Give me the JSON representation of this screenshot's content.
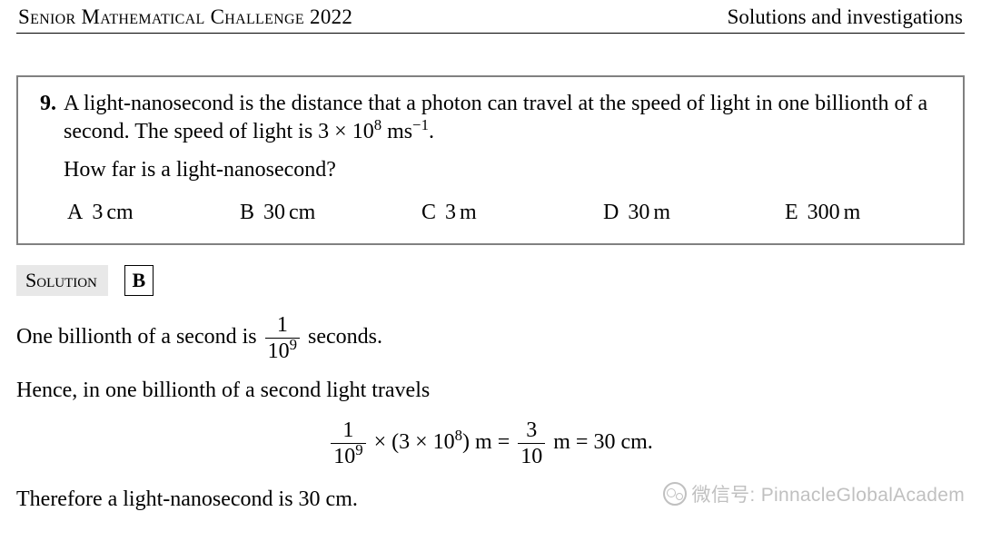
{
  "header": {
    "left": "Senior Mathematical Challenge 2022",
    "right": "Solutions and investigations"
  },
  "question": {
    "number": "9.",
    "text_pre": "A light-nanosecond is the distance that a photon can travel at the speed of light in one billionth of a second. The speed of light is 3 × 10",
    "text_exp": "8",
    "text_post": " ms",
    "text_exp2": "−1",
    "text_end": ".",
    "prompt": "How far is a light-nanosecond?",
    "options": [
      {
        "letter": "A",
        "value": "3",
        "unit": "cm"
      },
      {
        "letter": "B",
        "value": "30",
        "unit": "cm"
      },
      {
        "letter": "C",
        "value": "3",
        "unit": "m"
      },
      {
        "letter": "D",
        "value": "30",
        "unit": "m"
      },
      {
        "letter": "E",
        "value": "300",
        "unit": "m"
      }
    ]
  },
  "solution": {
    "label": "Solution",
    "answer": "B",
    "line1_pre": "One billionth of a second is ",
    "line1_frac_num": "1",
    "line1_frac_den_base": "10",
    "line1_frac_den_exp": "9",
    "line1_post": " seconds.",
    "line2": "Hence, in one billionth of a second light travels",
    "eq_frac1_num": "1",
    "eq_frac1_den_base": "10",
    "eq_frac1_den_exp": "9",
    "eq_mid_pre": " × (3 × 10",
    "eq_mid_exp": "8",
    "eq_mid_post": ") m = ",
    "eq_frac2_num": "3",
    "eq_frac2_den": "10",
    "eq_tail": " m = 30 cm.",
    "conclusion": "Therefore a light-nanosecond is 30 cm."
  },
  "watermark": {
    "text": "微信号: PinnacleGlobalAcadem"
  }
}
